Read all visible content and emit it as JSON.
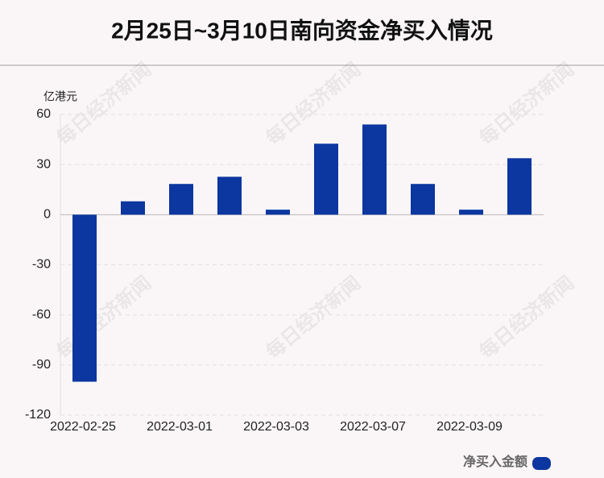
{
  "chart_data": {
    "type": "bar",
    "title": "2月25日~3月10日南向资金净买入情况",
    "y_label": "亿港元",
    "watermark": "每日经济新闻",
    "categories": [
      "2022-02-25",
      null,
      "2022-03-01",
      null,
      "2022-03-03",
      null,
      "2022-03-07",
      null,
      "2022-03-09",
      null
    ],
    "series": [
      {
        "name": "净买入金额",
        "color": "#0c36a0",
        "values": [
          -100,
          8,
          18.4,
          22.7,
          3,
          42.5,
          54,
          18.4,
          3,
          33.8
        ]
      }
    ],
    "ylim": [
      -120,
      60
    ],
    "yticks": [
      -120,
      -90,
      -60,
      -30,
      0,
      30,
      60
    ],
    "grid": true,
    "legend": "bottom-right"
  }
}
